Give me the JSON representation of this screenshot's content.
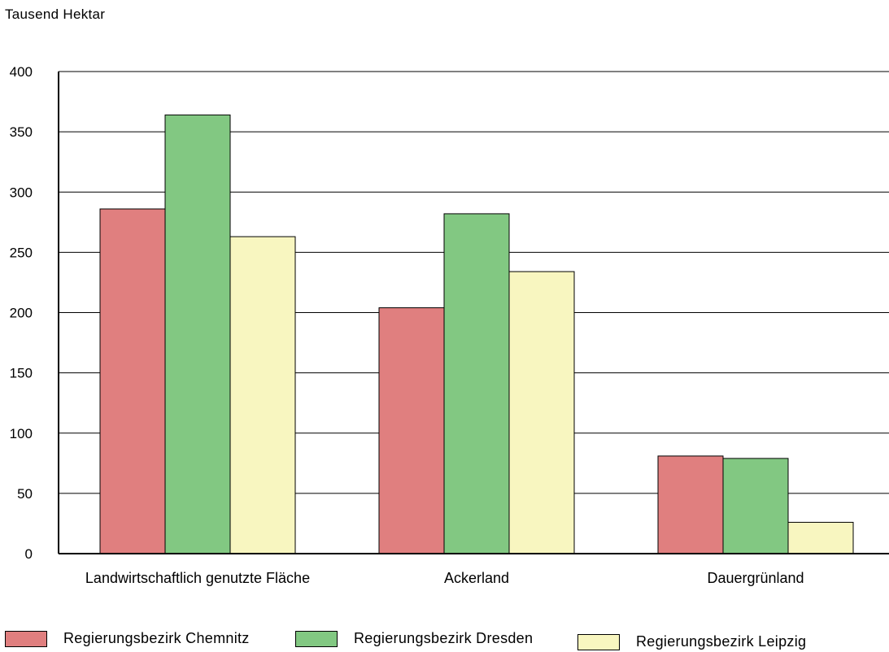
{
  "chart_data": {
    "type": "bar",
    "ylabel": "Tausend Hektar",
    "ylim": [
      0,
      400
    ],
    "yticks": [
      0,
      50,
      100,
      150,
      200,
      250,
      300,
      350,
      400
    ],
    "grid": true,
    "legend_position": "bottom",
    "categories": [
      "Landwirtschaftlich genutzte Fläche",
      "Ackerland",
      "Dauergrünland"
    ],
    "series": [
      {
        "name": "Regierungsbezirk Chemnitz",
        "color": "#e07f7f",
        "values": [
          286,
          204,
          81
        ]
      },
      {
        "name": "Regierungsbezirk Dresden",
        "color": "#82c882",
        "values": [
          364,
          282,
          79
        ]
      },
      {
        "name": "Regierungsbezirk Leipzig",
        "color": "#f8f6c0",
        "values": [
          263,
          234,
          26
        ]
      }
    ]
  }
}
